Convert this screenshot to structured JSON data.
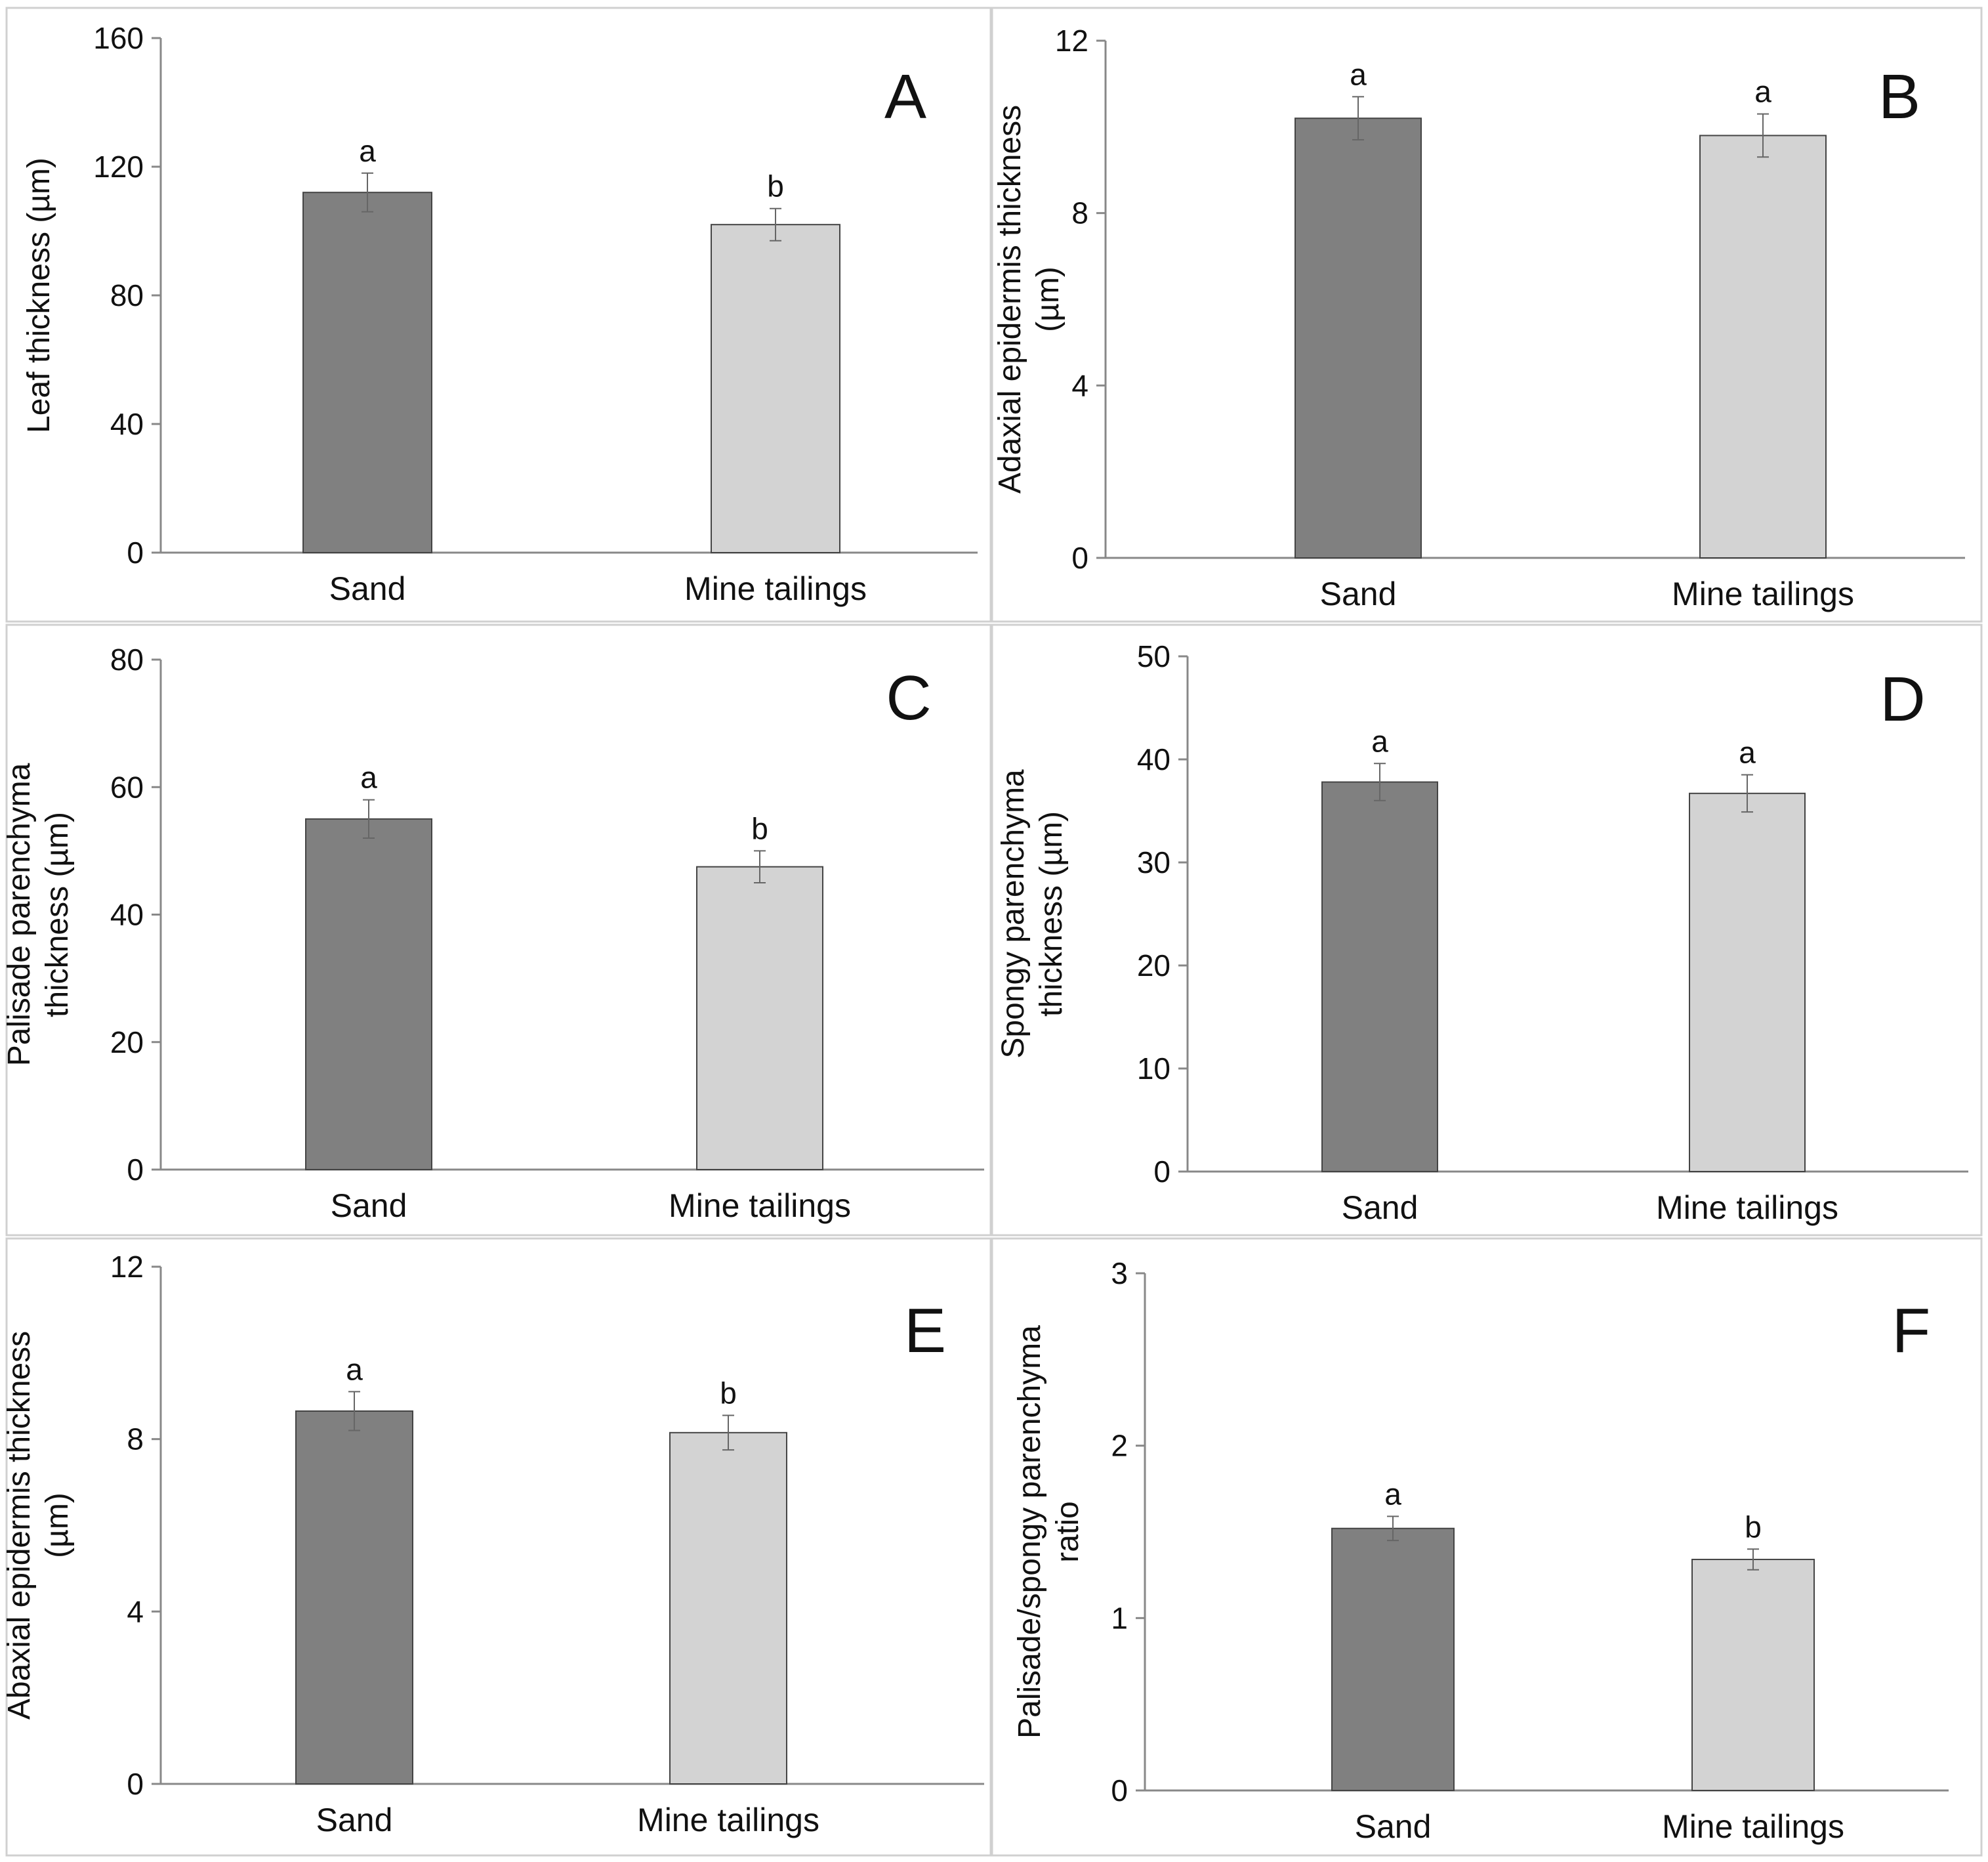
{
  "figure": {
    "colors": {
      "sand": "#808080",
      "mine_tailings": "#d3d3d3",
      "axis": "#888888",
      "border": "#d0d0d0",
      "error": "#666666"
    }
  },
  "chart_data": [
    {
      "panel": "A",
      "type": "bar",
      "title": "",
      "xlabel": "",
      "ylabel_lines": [
        "Leaf thickness (µm)"
      ],
      "categories": [
        "Sand",
        "Mine tailings"
      ],
      "values": [
        112,
        102
      ],
      "errors": [
        6,
        5
      ],
      "letters": [
        "a",
        "b"
      ],
      "ylim": [
        0,
        160
      ],
      "yticks": [
        0,
        40,
        80,
        120,
        160
      ],
      "grid": false
    },
    {
      "panel": "B",
      "type": "bar",
      "title": "",
      "xlabel": "",
      "ylabel_lines": [
        "Adaxial epidermis thickness",
        "(µm)"
      ],
      "categories": [
        "Sand",
        "Mine tailings"
      ],
      "values": [
        10.2,
        9.8
      ],
      "errors": [
        0.5,
        0.5
      ],
      "letters": [
        "a",
        "a"
      ],
      "ylim": [
        0,
        12
      ],
      "yticks": [
        0,
        4,
        8,
        12
      ],
      "grid": false
    },
    {
      "panel": "C",
      "type": "bar",
      "title": "",
      "xlabel": "",
      "ylabel_lines": [
        "Palisade parenchyma",
        "thickness (µm)"
      ],
      "categories": [
        "Sand",
        "Mine tailings"
      ],
      "values": [
        55,
        47.5
      ],
      "errors": [
        3,
        2.5
      ],
      "letters": [
        "a",
        "b"
      ],
      "ylim": [
        0,
        80
      ],
      "yticks": [
        0,
        20,
        40,
        60,
        80
      ],
      "grid": false
    },
    {
      "panel": "D",
      "type": "bar",
      "title": "",
      "xlabel": "",
      "ylabel_lines": [
        "Spongy parenchyma",
        "thickness (µm)"
      ],
      "categories": [
        "Sand",
        "Mine tailings"
      ],
      "values": [
        37.8,
        36.7
      ],
      "errors": [
        1.8,
        1.8
      ],
      "letters": [
        "a",
        "a"
      ],
      "ylim": [
        0,
        50
      ],
      "yticks": [
        0,
        10,
        20,
        30,
        40,
        50
      ],
      "grid": false
    },
    {
      "panel": "E",
      "type": "bar",
      "title": "",
      "xlabel": "",
      "ylabel_lines": [
        "Abaxial epidermis thickness",
        "(µm)"
      ],
      "categories": [
        "Sand",
        "Mine tailings"
      ],
      "values": [
        8.65,
        8.15
      ],
      "errors": [
        0.45,
        0.4
      ],
      "letters": [
        "a",
        "b"
      ],
      "ylim": [
        0,
        12
      ],
      "yticks": [
        0,
        4,
        8,
        12
      ],
      "grid": false
    },
    {
      "panel": "F",
      "type": "bar",
      "title": "",
      "xlabel": "",
      "ylabel_lines": [
        "Palisade/spongy parenchyma",
        "ratio"
      ],
      "categories": [
        "Sand",
        "Mine tailings"
      ],
      "values": [
        1.52,
        1.34
      ],
      "errors": [
        0.07,
        0.06
      ],
      "letters": [
        "a",
        "b"
      ],
      "ylim": [
        0,
        3
      ],
      "yticks": [
        0,
        1,
        2,
        3
      ],
      "grid": false
    }
  ]
}
